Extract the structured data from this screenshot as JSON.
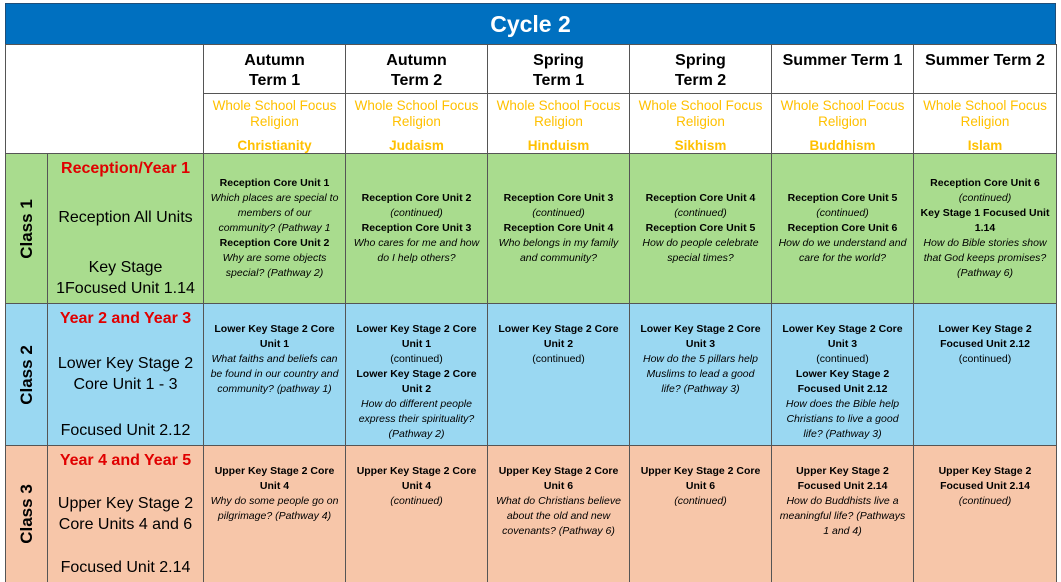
{
  "title": "Cycle 2",
  "terms": [
    {
      "name": [
        "Autumn",
        "Term 1"
      ],
      "focus": [
        "Whole School Focus",
        "Religion"
      ],
      "religion": "Christianity"
    },
    {
      "name": [
        "Autumn",
        "Term 2"
      ],
      "focus": [
        "Whole School Focus",
        "Religion"
      ],
      "religion": "Judaism"
    },
    {
      "name": [
        "Spring",
        "Term 1"
      ],
      "focus": [
        "Whole School Focus",
        "Religion"
      ],
      "religion": "Hinduism"
    },
    {
      "name": [
        "Spring",
        "Term 2"
      ],
      "focus": [
        "Whole School Focus",
        "Religion"
      ],
      "religion": "Sikhism"
    },
    {
      "name": [
        "Summer Term 1"
      ],
      "focus": [
        "Whole School Focus",
        "Religion"
      ],
      "religion": "Buddhism"
    },
    {
      "name": [
        "Summer Term 2"
      ],
      "focus": [
        "Whole School Focus",
        "Religion"
      ],
      "religion": "Islam"
    }
  ],
  "rows": [
    {
      "class": "Class 1",
      "color": "#a9dc8e",
      "heading": "Reception/Year 1",
      "details": [
        "Reception All Units",
        "Key Stage 1Focused Unit 1.14"
      ],
      "cells": [
        [
          {
            "text": "Reception Core Unit 1",
            "style": "bold"
          },
          {
            "text": "Which places are special to members of our community? (Pathway 1",
            "style": "italic"
          },
          {
            "text": "Reception Core Unit 2",
            "style": "bold"
          },
          {
            "text": "Why are some objects special? (Pathway 2)",
            "style": "italic"
          }
        ],
        [
          {
            "text": "Reception Core Unit 2",
            "style": "bold"
          },
          {
            "text": "(continued)",
            "style": "italic"
          },
          {
            "text": "Reception Core Unit 3",
            "style": "bold"
          },
          {
            "text": "Who cares for me and how do I help others?",
            "style": "italic"
          }
        ],
        [
          {
            "text": "Reception Core Unit 3",
            "style": "bold"
          },
          {
            "text": "(continued)",
            "style": "italic"
          },
          {
            "text": "Reception Core Unit 4",
            "style": "bold"
          },
          {
            "text": "Who belongs in my family and community?",
            "style": "italic"
          }
        ],
        [
          {
            "text": "Reception Core Unit 4",
            "style": "bold"
          },
          {
            "text": "(continued)",
            "style": "italic"
          },
          {
            "text": "Reception Core Unit 5",
            "style": "bold"
          },
          {
            "text": "How do people celebrate special times?",
            "style": "italic"
          }
        ],
        [
          {
            "text": "Reception Core Unit 5",
            "style": "bold"
          },
          {
            "text": "(continued)",
            "style": "italic"
          },
          {
            "text": "Reception Core Unit 6",
            "style": "bold"
          },
          {
            "text": "How do we understand and care for the world?",
            "style": "italic"
          }
        ],
        [
          {
            "text": "Reception Core Unit 6",
            "style": "bold"
          },
          {
            "text": "(continued)",
            "style": "italic"
          },
          {
            "text": "Key Stage 1 Focused Unit 1.14",
            "style": "bold"
          },
          {
            "text": "How do Bible stories show that God keeps promises? (Pathway 6)",
            "style": "italic"
          }
        ]
      ]
    },
    {
      "class": "Class 2",
      "color": "#9ad8f2",
      "heading": "Year 2 and Year 3",
      "details": [
        "Lower Key Stage 2 Core Unit 1 - 3",
        "Focused Unit 2.12"
      ],
      "cells": [
        [
          {
            "text": "Lower Key Stage 2 Core Unit 1",
            "style": "bold"
          },
          {
            "text": "What faiths and beliefs can be found in our country and community? (pathway 1)",
            "style": "italic"
          }
        ],
        [
          {
            "text": "Lower Key Stage 2 Core Unit 1",
            "style": "bold"
          },
          {
            "text": "(continued)",
            "style": "normal"
          },
          {
            "text": "Lower Key Stage 2 Core Unit 2",
            "style": "bold"
          },
          {
            "text": "How do different people express their spirituality? (Pathway 2)",
            "style": "italic"
          }
        ],
        [
          {
            "text": "Lower Key Stage 2 Core Unit 2",
            "style": "bold"
          },
          {
            "text": "(continued)",
            "style": "normal"
          }
        ],
        [
          {
            "text": "Lower Key Stage 2 Core Unit 3",
            "style": "bold"
          },
          {
            "text": "How do the 5 pillars help Muslims to lead a good life? (Pathway 3)",
            "style": "italic"
          }
        ],
        [
          {
            "text": "Lower Key Stage 2 Core Unit 3",
            "style": "bold"
          },
          {
            "text": "(continued)",
            "style": "normal"
          },
          {
            "text": "Lower Key Stage 2 Focused Unit 2.12",
            "style": "bold"
          },
          {
            "text": "How does the Bible help Christians to live a good life? (Pathway 3)",
            "style": "italic"
          }
        ],
        [
          {
            "text": "Lower Key Stage 2 Focused Unit 2.12",
            "style": "bold"
          },
          {
            "text": "(continued)",
            "style": "normal"
          }
        ]
      ]
    },
    {
      "class": "Class 3",
      "color": "#f7c6a9",
      "heading": "Year 4 and Year 5",
      "details": [
        "Upper Key Stage 2 Core Units 4 and 6",
        "Focused Unit 2.14"
      ],
      "cells": [
        [
          {
            "text": "Upper Key Stage 2 Core Unit 4",
            "style": "bold"
          },
          {
            "text": "Why do some people go on pilgrimage? (Pathway 4)",
            "style": "italic"
          }
        ],
        [
          {
            "text": "Upper Key Stage 2 Core Unit 4",
            "style": "bold"
          },
          {
            "text": "(continued)",
            "style": "italic"
          }
        ],
        [
          {
            "text": "Upper Key Stage 2 Core Unit 6",
            "style": "bold"
          },
          {
            "text": "What do Christians believe about the old and new covenants? (Pathway 6)",
            "style": "italic"
          }
        ],
        [
          {
            "text": "Upper Key Stage 2 Core Unit 6",
            "style": "bold"
          },
          {
            "text": "(continued)",
            "style": "italic"
          }
        ],
        [
          {
            "text": "Upper Key Stage 2 Focused Unit 2.14",
            "style": "bold"
          },
          {
            "text": "How do Buddhists live a meaningful life? (Pathways 1 and 4)",
            "style": "italic"
          }
        ],
        [
          {
            "text": "Upper Key Stage 2 Focused Unit 2.14",
            "style": "bold"
          },
          {
            "text": "(continued)",
            "style": "italic"
          }
        ]
      ]
    }
  ]
}
